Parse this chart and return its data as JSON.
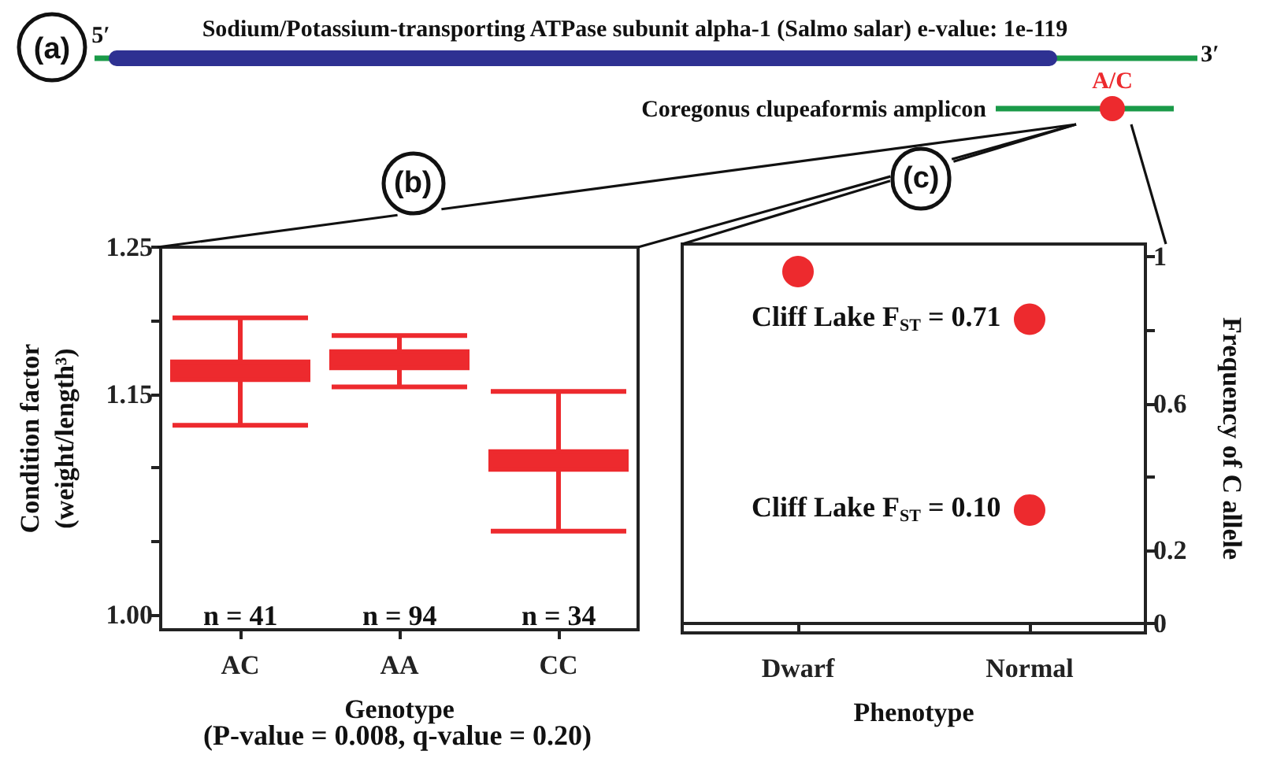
{
  "chart_data": [
    {
      "type": "other",
      "title": "(a)",
      "annotations": [
        "5′",
        "Sodium/Potassium-transporting ATPase subunit alpha-1 (Salmo salar) e-value: 1e-119",
        "3′",
        "Coregonus clupeaformis amplicon",
        "A/C"
      ]
    },
    {
      "type": "box",
      "title": "(b)",
      "categories": [
        "AC",
        "AA",
        "CC"
      ],
      "xlabel": "Genotype",
      "ylabel": "Condition factor (weight/length³)",
      "ylim": [
        0.99,
        1.25
      ],
      "yticks": [
        {
          "value": 1,
          "label": "1.00"
        },
        {
          "value": 1.05,
          "label": null
        },
        {
          "value": 1.1,
          "label": null
        },
        1.15,
        {
          "value": 1.2,
          "label": null
        },
        1.25
      ],
      "series": [
        {
          "color": "#ed2a2e",
          "boxes": [
            {
              "low": 1.129,
              "q1": 1.16,
              "median": 1.166,
              "q3": 1.172,
              "high": 1.202
            },
            {
              "low": 1.155,
              "q1": 1.168,
              "median": 1.174,
              "q3": 1.179,
              "high": 1.19
            },
            {
              "low": 1.057,
              "q1": 1.099,
              "median": 1.105,
              "q3": 1.111,
              "high": 1.152
            }
          ]
        }
      ],
      "annotations": [
        "n = 41",
        "n = 94",
        "n = 34",
        "(P-value = 0.008, q-value = 0.20)"
      ]
    },
    {
      "type": "scatter",
      "title": "(c)",
      "categories": [
        "Dwarf",
        "Normal"
      ],
      "xlabel": "Phenotype",
      "y2label": "Frequency of C allele",
      "y2lim": [
        -0.025,
        1.035
      ],
      "y2ticks": [
        0,
        0.2,
        {
          "value": 0.4,
          "label": null
        },
        0.6,
        {
          "value": 0.8,
          "label": null
        },
        1
      ],
      "marker": "circle",
      "series": [
        {
          "color": "#ed2a2e",
          "axis": "y2",
          "x": [
            "Dwarf",
            "Normal",
            "Normal"
          ],
          "values": [
            0.96,
            0.83,
            0.31
          ]
        }
      ],
      "annotations": [
        "Cliff Lake F$_{ST}$ = 0.71",
        "Cliff Lake F$_{ST}$ = 0.10"
      ]
    }
  ]
}
